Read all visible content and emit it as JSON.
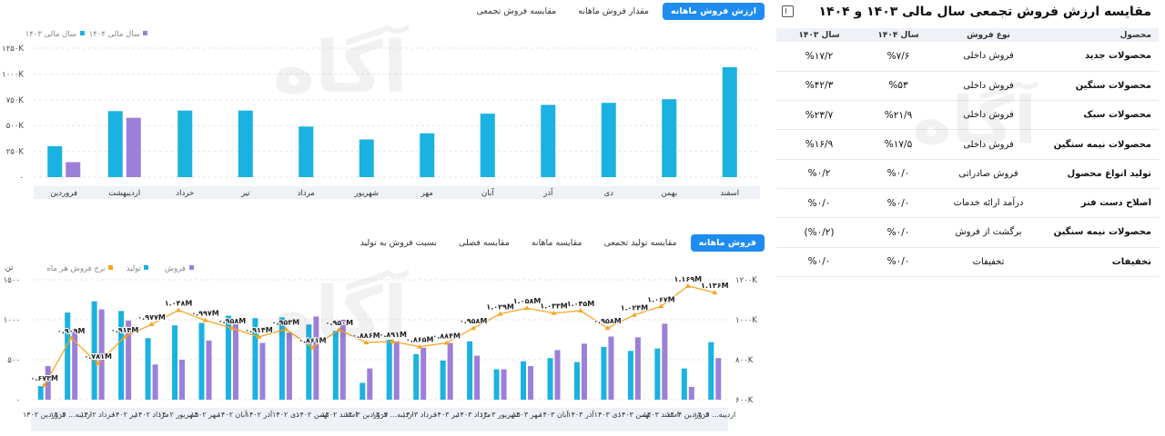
{
  "top_tabs": [
    "ارزش فروش ماهانه",
    "مقدار فروش ماهانه",
    "مقایسه فروش تجمعی"
  ],
  "bottom_tabs": [
    "فروش ماهانه",
    "مقایسه تولید تجمعی",
    "مقایسه ماهانه",
    "مقایسه فصلی",
    "نسبت فروش به تولید"
  ],
  "watermark": {
    "brand": "آگاه",
    "subtitle": "کارگزار بورس اوراق بهادار و کالا و انرژی"
  },
  "table": {
    "title": "مقایسه ارزش فروش تجمعی سال مالی ۱۴۰۳ و ۱۴۰۴",
    "headers": [
      "محصول",
      "نوع فروش",
      "سال ۱۴۰۴",
      "سال ۱۴۰۳"
    ],
    "rows": [
      [
        "محصولات جدید",
        "فروش داخلی",
        "%۷/۶",
        "%۱۷/۲"
      ],
      [
        "محصولات سنگین",
        "فروش داخلی",
        "%۵۳",
        "%۴۲/۳"
      ],
      [
        "محصولات سبک",
        "فروش داخلی",
        "%۲۱/۹",
        "%۲۳/۷"
      ],
      [
        "محصولات نیمه سنگین",
        "فروش داخلی",
        "%۱۷/۵",
        "%۱۶/۹"
      ],
      [
        "تولید انواع محصول",
        "فروش صادراتی",
        "%۰/۰",
        "%۰/۲"
      ],
      [
        "اصلاح دست فنر",
        "درآمد ارائه خدمات",
        "%۰/۰",
        "%۰/۰"
      ],
      [
        "محصولات نیمه سنگین",
        "برگشت از فروش",
        "%۰/۰",
        "(%۰/۲)"
      ],
      [
        "تخفیفات",
        "تخفیفات",
        "%۰/۰",
        "%۰/۰"
      ]
    ]
  },
  "chart_data": [
    {
      "type": "bar",
      "title": "",
      "categories": [
        "فروردین",
        "اردیبهشت",
        "خرداد",
        "تیر",
        "مرداد",
        "شهریور",
        "مهر",
        "آبان",
        "آذر",
        "دی",
        "بهمن",
        "اسفند"
      ],
      "series": [
        {
          "name": "سال مالی ۱۴۰۳",
          "color": "#1ab2e0",
          "values": [
            300,
            640,
            645,
            645,
            490,
            365,
            425,
            615,
            700,
            720,
            755,
            1065
          ]
        },
        {
          "name": "سال مالی ۱۴۰۴",
          "color": "#9c7fd8",
          "values": [
            145,
            575,
            null,
            null,
            null,
            null,
            null,
            null,
            null,
            null,
            null,
            null
          ]
        }
      ],
      "ylim": [
        0,
        1250
      ],
      "yticks": [
        "۰",
        "۲۵۰K",
        "۵۰۰K",
        "۷۵۰K",
        "۱۰۰۰K",
        "۱۲۵۰K"
      ],
      "legend": "top-left"
    },
    {
      "type": "bar",
      "categories": [
        "فروردین ۱۴۰۲",
        "اردیبه... ۱۴۰۲",
        "خرداد ۱۴۰۲",
        "تیر ۱۴۰۲",
        "مرداد ۱۴۰۲",
        "شهریور ۱۴۰۲",
        "مهر ۱۴۰۲",
        "آبان ۱۴۰۲",
        "آذر ۱۴۰۲",
        "دی ۱۴۰۲",
        "بهمن ۱۴۰۲",
        "اسفند ۱۴۰۲",
        "فروردین ۱۴۰۳",
        "اردیبه... ۱۴۰۳",
        "خرداد ۱۴۰۳",
        "تیر ۱۴۰۳",
        "مرداد ۱۴۰۳",
        "شهریور ۱۴۰۳",
        "مهر ۱۴۰۳",
        "آبان ۱۴۰۳",
        "آذر ۱۴۰۳",
        "دی ۱۴۰۳",
        "بهمن ۱۴۰۳",
        "اسفند ۱۴۰۳",
        "فروردین ۱۴۰۴",
        "اردیبه... ۱۴۰۴"
      ],
      "series": [
        {
          "name": "تولید",
          "color": "#1ab2e0",
          "values": [
            170,
            1090,
            1230,
            1110,
            770,
            930,
            960,
            1050,
            1020,
            1030,
            940,
            860,
            210,
            750,
            570,
            490,
            730,
            380,
            480,
            520,
            470,
            660,
            610,
            640,
            390,
            720
          ]
        },
        {
          "name": "فروش",
          "color": "#9c7fd8",
          "values": [
            420,
            880,
            1130,
            990,
            440,
            500,
            740,
            1000,
            710,
            840,
            1040,
            1000,
            390,
            730,
            650,
            710,
            550,
            380,
            420,
            620,
            700,
            790,
            780,
            950,
            160,
            520
          ]
        },
        {
          "name": "نرخ فروش هر ماه",
          "color": "#f5a623",
          "values": [
            673,
            909,
            781,
            914,
            977,
            1048,
            997,
            958,
            914,
            953,
            861,
            950,
            886,
            891,
            865,
            884,
            958,
            1029,
            1058,
            1033,
            1045,
            958,
            1024,
            1067,
            1169,
            1136
          ]
        }
      ],
      "line_labels": [
        "۰.۶۷۳M",
        "۰.۹۰۹M",
        "۰.۷۸۱M",
        "۰.۹۱۴M",
        "۰.۹۷۷M",
        "۱.۰۴۸M",
        "۰.۹۹۷M",
        "۰.۹۵۸M",
        "۰.۹۱۴M",
        "۰.۹۵۳M",
        "۰.۸۶۱M",
        "۰.۹۵۰M",
        "۰.۸۸۶M",
        "۰.۸۹۱M",
        "۰.۸۶۵M",
        "۰.۸۸۴M",
        "۰.۹۵۸M",
        "۱.۰۲۹M",
        "۱.۰۵۸M",
        "۱.۰۳۳M",
        "۱.۰۴۵M",
        "۰.۹۵۸M",
        "۱.۰۲۴M",
        "۱.۰۶۷M",
        "۱.۱۶۹M",
        "۱.۱۳۶M"
      ],
      "y_left": {
        "label": "تن",
        "lim": [
          0,
          1500
        ],
        "ticks": [
          "۰",
          "۵۰۰",
          "۱۰۰۰",
          "۱۵۰۰"
        ]
      },
      "y_right": {
        "lim": [
          600,
          1200
        ],
        "ticks": [
          "۶۰۰K",
          "۸۰۰K",
          "۱۰۰۰K",
          "۱۲۰۰K"
        ]
      },
      "legend": "top-left"
    }
  ]
}
